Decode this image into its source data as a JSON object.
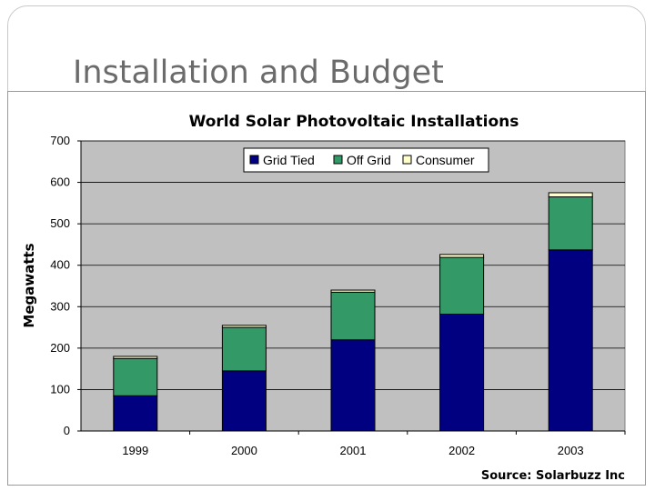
{
  "slide": {
    "title": "Installation and Budget"
  },
  "chart_data": {
    "type": "bar",
    "stacked": true,
    "title": "World Solar Photovoltaic Installations",
    "xlabel": "",
    "ylabel": "Megawatts",
    "ylim": [
      0,
      700
    ],
    "yticks": [
      0,
      100,
      200,
      300,
      400,
      500,
      600,
      700
    ],
    "grid": true,
    "legend_position": "top-right",
    "categories": [
      "1999",
      "2000",
      "2001",
      "2002",
      "2003"
    ],
    "series": [
      {
        "name": "Grid Tied",
        "color": "#000080",
        "values": [
          85,
          145,
          220,
          282,
          437
        ]
      },
      {
        "name": "Off Grid",
        "color": "#339966",
        "values": [
          90,
          105,
          115,
          137,
          128
        ]
      },
      {
        "name": "Consumer",
        "color": "#ffffcc",
        "values": [
          5,
          5,
          5,
          7,
          10
        ]
      }
    ],
    "source": "Source: Solarbuzz Inc"
  }
}
